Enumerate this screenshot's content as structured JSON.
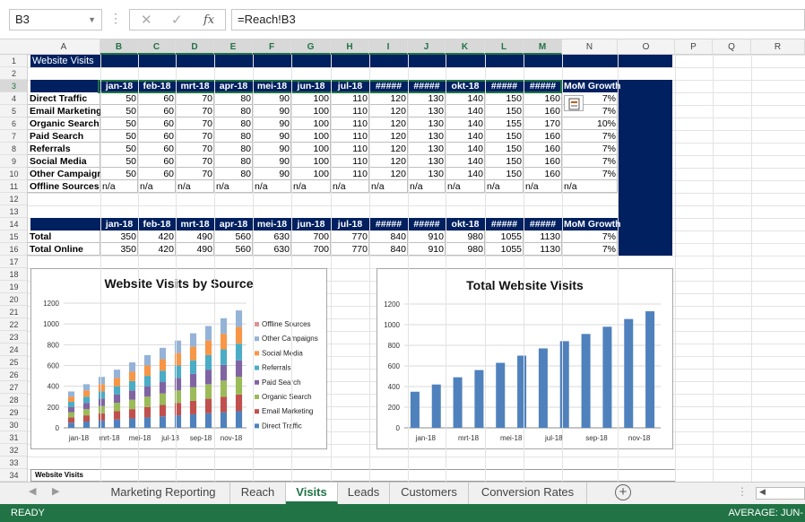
{
  "name_box": "B3",
  "formula": "=Reach!B3",
  "columns": [
    "A",
    "B",
    "C",
    "D",
    "E",
    "F",
    "G",
    "H",
    "I",
    "J",
    "K",
    "L",
    "M",
    "N",
    "O",
    "P",
    "Q",
    "R"
  ],
  "rows": [
    "1",
    "2",
    "3",
    "4",
    "5",
    "6",
    "7",
    "8",
    "9",
    "10",
    "11",
    "12",
    "13",
    "14",
    "15",
    "16",
    "17",
    "18",
    "19",
    "20",
    "21",
    "22",
    "23",
    "24",
    "25",
    "26",
    "27",
    "28",
    "29",
    "30",
    "31",
    "32",
    "33",
    "34"
  ],
  "sheet_title": "Website Visits",
  "month_headers": [
    "jan-18",
    "feb-18",
    "mrt-18",
    "apr-18",
    "mei-18",
    "jun-18",
    "jul-18",
    "#####",
    "#####",
    "okt-18",
    "#####",
    "#####"
  ],
  "growth_header": "MoM Growth",
  "source_rows": [
    {
      "label": "Direct Traffic",
      "values": [
        "50",
        "60",
        "70",
        "80",
        "90",
        "100",
        "110",
        "120",
        "130",
        "140",
        "150",
        "160"
      ],
      "growth": "7%"
    },
    {
      "label": "Email Marketing",
      "values": [
        "50",
        "60",
        "70",
        "80",
        "90",
        "100",
        "110",
        "120",
        "130",
        "140",
        "150",
        "160"
      ],
      "growth": "7%"
    },
    {
      "label": "Organic Search",
      "values": [
        "50",
        "60",
        "70",
        "80",
        "90",
        "100",
        "110",
        "120",
        "130",
        "140",
        "155",
        "170"
      ],
      "growth": "10%"
    },
    {
      "label": "Paid Search",
      "values": [
        "50",
        "60",
        "70",
        "80",
        "90",
        "100",
        "110",
        "120",
        "130",
        "140",
        "150",
        "160"
      ],
      "growth": "7%"
    },
    {
      "label": "Referrals",
      "values": [
        "50",
        "60",
        "70",
        "80",
        "90",
        "100",
        "110",
        "120",
        "130",
        "140",
        "150",
        "160"
      ],
      "growth": "7%"
    },
    {
      "label": "Social Media",
      "values": [
        "50",
        "60",
        "70",
        "80",
        "90",
        "100",
        "110",
        "120",
        "130",
        "140",
        "150",
        "160"
      ],
      "growth": "7%"
    },
    {
      "label": "Other Campaigns",
      "values": [
        "50",
        "60",
        "70",
        "80",
        "90",
        "100",
        "110",
        "120",
        "130",
        "140",
        "150",
        "160"
      ],
      "growth": "7%"
    }
  ],
  "offline_row": {
    "label": "Offline Sources",
    "values": [
      "n/a",
      "n/a",
      "n/a",
      "n/a",
      "n/a",
      "n/a",
      "n/a",
      "n/a",
      "n/a",
      "n/a",
      "n/a",
      "n/a",
      "n/a"
    ]
  },
  "total_rows": [
    {
      "label": "Total",
      "values": [
        "350",
        "420",
        "490",
        "560",
        "630",
        "700",
        "770",
        "840",
        "910",
        "980",
        "1055",
        "1130"
      ],
      "growth": "7%"
    },
    {
      "label": "Total Online",
      "values": [
        "350",
        "420",
        "490",
        "560",
        "630",
        "700",
        "770",
        "840",
        "910",
        "980",
        "1055",
        "1130"
      ],
      "growth": "7%"
    }
  ],
  "row34_label": "Website Visits",
  "sheet_tabs": [
    "Marketing Reporting",
    "Reach",
    "Visits",
    "Leads",
    "Customers",
    "Conversion Rates"
  ],
  "active_tab": "Visits",
  "status_left": "READY",
  "status_right": "AVERAGE: JUN-",
  "colors": {
    "excel_green": "#217346",
    "navy": "#002060"
  },
  "chart_data": [
    {
      "type": "bar",
      "stacked": true,
      "title": "Website Visits by Source",
      "categories": [
        "jan-18",
        "feb-18",
        "mrt-18",
        "apr-18",
        "mei-18",
        "jun-18",
        "jul-18",
        "aug-18",
        "sep-18",
        "okt-18",
        "nov-18",
        "dec-18"
      ],
      "tick_labels": [
        "jan-18",
        "mrt-18",
        "mei-18",
        "jul-18",
        "sep-18",
        "nov-18"
      ],
      "ylim": [
        0,
        1200
      ],
      "yticks": [
        "0",
        "200",
        "400",
        "600",
        "800",
        "1000",
        "1200"
      ],
      "legend_position": "right",
      "legend_order": [
        "Offline Sources",
        "Other Campaigns",
        "Social Media",
        "Referrals",
        "Paid Search",
        "Organic Search",
        "Email Marketing",
        "Direct Traffic"
      ],
      "series": [
        {
          "name": "Direct Traffic",
          "color": "#4f81bd",
          "values": [
            50,
            60,
            70,
            80,
            90,
            100,
            110,
            120,
            130,
            140,
            150,
            160
          ]
        },
        {
          "name": "Email Marketing",
          "color": "#c0504d",
          "values": [
            50,
            60,
            70,
            80,
            90,
            100,
            110,
            120,
            130,
            140,
            150,
            160
          ]
        },
        {
          "name": "Organic Search",
          "color": "#9bbb59",
          "values": [
            50,
            60,
            70,
            80,
            90,
            100,
            110,
            120,
            130,
            140,
            155,
            170
          ]
        },
        {
          "name": "Paid Search",
          "color": "#8064a2",
          "values": [
            50,
            60,
            70,
            80,
            90,
            100,
            110,
            120,
            130,
            140,
            150,
            160
          ]
        },
        {
          "name": "Referrals",
          "color": "#4bacc6",
          "values": [
            50,
            60,
            70,
            80,
            90,
            100,
            110,
            120,
            130,
            140,
            150,
            160
          ]
        },
        {
          "name": "Social Media",
          "color": "#f79646",
          "values": [
            50,
            60,
            70,
            80,
            90,
            100,
            110,
            120,
            130,
            140,
            150,
            160
          ]
        },
        {
          "name": "Other Campaigns",
          "color": "#95b3d7",
          "values": [
            50,
            60,
            70,
            80,
            90,
            100,
            110,
            120,
            130,
            140,
            150,
            160
          ]
        },
        {
          "name": "Offline Sources",
          "color": "#da9694",
          "values": [
            0,
            0,
            0,
            0,
            0,
            0,
            0,
            0,
            0,
            0,
            0,
            0
          ]
        }
      ]
    },
    {
      "type": "bar",
      "title": "Total Website Visits",
      "categories": [
        "jan-18",
        "feb-18",
        "mrt-18",
        "apr-18",
        "mei-18",
        "jun-18",
        "jul-18",
        "aug-18",
        "sep-18",
        "okt-18",
        "nov-18",
        "dec-18"
      ],
      "tick_labels": [
        "jan-18",
        "mrt-18",
        "mei-18",
        "jul-18",
        "sep-18",
        "nov-18"
      ],
      "ylim": [
        0,
        1200
      ],
      "yticks": [
        "0",
        "200",
        "400",
        "600",
        "800",
        "1000",
        "1200"
      ],
      "series": [
        {
          "color": "#4f81bd",
          "values": [
            350,
            420,
            490,
            560,
            630,
            700,
            770,
            840,
            910,
            980,
            1055,
            1130
          ]
        }
      ]
    }
  ]
}
